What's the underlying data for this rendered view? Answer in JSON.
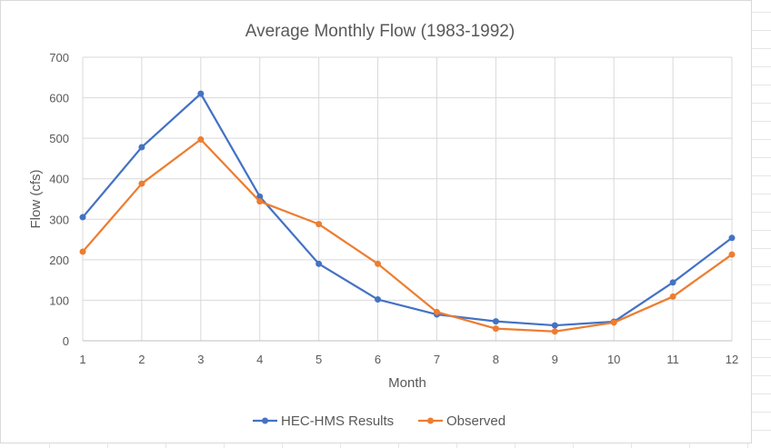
{
  "chart_data": {
    "type": "line",
    "title": "Average Monthly Flow (1983-1992)",
    "xlabel": "Month",
    "ylabel": "Flow (cfs)",
    "categories": [
      "1",
      "2",
      "3",
      "4",
      "5",
      "6",
      "7",
      "8",
      "9",
      "10",
      "11",
      "12"
    ],
    "ylim": [
      0,
      700
    ],
    "yticks": [
      "0",
      "100",
      "200",
      "300",
      "400",
      "500",
      "600",
      "700"
    ],
    "grid": true,
    "legend_position": "bottom",
    "series": [
      {
        "name": "HEC-HMS Results",
        "color": "#4472C4",
        "values": [
          305,
          478,
          610,
          356,
          190,
          102,
          65,
          48,
          38,
          47,
          144,
          254
        ]
      },
      {
        "name": "Observed",
        "color": "#ED7D31",
        "values": [
          220,
          388,
          497,
          344,
          288,
          190,
          71,
          30,
          23,
          45,
          109,
          213
        ]
      }
    ]
  }
}
